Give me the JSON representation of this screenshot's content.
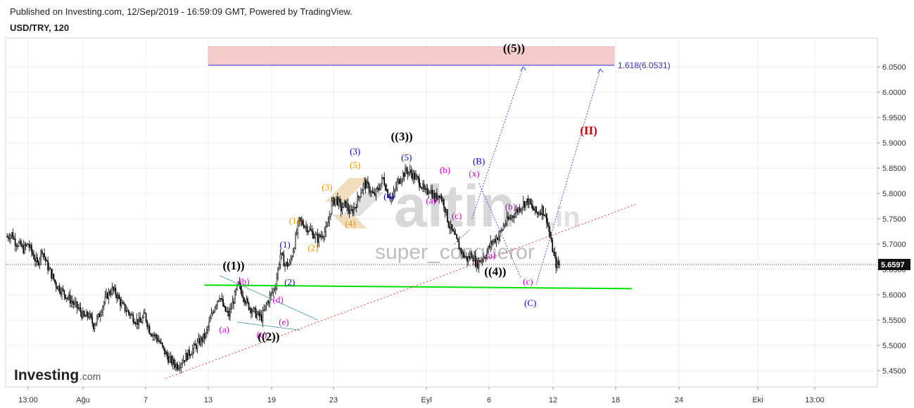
{
  "header": {
    "published": "Published on Investing.com, 12/Sep/2019 - 16:59:09 GMT, Powered by TradingView.",
    "symbol": "USD/TRY, 120"
  },
  "branding": {
    "logo_bold": "Investing",
    "logo_small": ".com",
    "watermark_main": "altin",
    "watermark_suffix": ".in",
    "watermark_sub": "super_conqueror"
  },
  "colors": {
    "up": "#000000",
    "down": "#000000",
    "green": "#00e000",
    "red_dots": "#e53935",
    "blue": "#0000cc",
    "magenta": "#cc00cc",
    "orange": "#e69500",
    "target_zone": "#f4cccc"
  },
  "chart_data": {
    "type": "candlestick",
    "title": "USD/TRY, 120",
    "y_ticks": [
      "6.0500",
      "6.0000",
      "5.9500",
      "5.9000",
      "5.8500",
      "5.8000",
      "5.7500",
      "5.7000",
      "5.6500",
      "5.6000",
      "5.5500",
      "5.5000",
      "5.4500"
    ],
    "y_range": [
      5.42,
      6.11
    ],
    "x_ticks": [
      "13:00",
      "Ağu",
      "7",
      "13",
      "19",
      "23",
      "Eyl",
      "6",
      "12",
      "18",
      "24",
      "Eki",
      "13:00"
    ],
    "last_price": "5.6597",
    "last_price_value": 5.6597,
    "fib_label": "1.618(6.0531)",
    "fib_value": 6.0531,
    "target_zone": {
      "low": 6.0531,
      "high": 6.09
    },
    "close_path": [
      [
        0,
        5.715
      ],
      [
        4,
        5.72
      ],
      [
        7,
        5.705
      ],
      [
        10,
        5.7
      ],
      [
        14,
        5.69
      ],
      [
        18,
        5.7
      ],
      [
        22,
        5.68
      ],
      [
        26,
        5.66
      ],
      [
        30,
        5.69
      ],
      [
        34,
        5.66
      ],
      [
        38,
        5.64
      ],
      [
        42,
        5.62
      ],
      [
        46,
        5.61
      ],
      [
        50,
        5.6
      ],
      [
        54,
        5.59
      ],
      [
        58,
        5.58
      ],
      [
        62,
        5.57
      ],
      [
        66,
        5.555
      ],
      [
        70,
        5.56
      ],
      [
        74,
        5.54
      ],
      [
        78,
        5.555
      ],
      [
        82,
        5.58
      ],
      [
        86,
        5.6
      ],
      [
        90,
        5.61
      ],
      [
        94,
        5.6
      ],
      [
        98,
        5.58
      ],
      [
        102,
        5.57
      ],
      [
        106,
        5.56
      ],
      [
        110,
        5.55
      ],
      [
        114,
        5.545
      ],
      [
        118,
        5.56
      ],
      [
        122,
        5.53
      ],
      [
        126,
        5.52
      ],
      [
        130,
        5.51
      ],
      [
        134,
        5.49
      ],
      [
        138,
        5.475
      ],
      [
        142,
        5.465
      ],
      [
        146,
        5.46
      ],
      [
        150,
        5.47
      ],
      [
        154,
        5.48
      ],
      [
        158,
        5.49
      ],
      [
        162,
        5.5
      ],
      [
        166,
        5.51
      ],
      [
        170,
        5.52
      ],
      [
        174,
        5.55
      ],
      [
        178,
        5.58
      ],
      [
        182,
        5.6
      ],
      [
        186,
        5.57
      ],
      [
        190,
        5.56
      ],
      [
        194,
        5.59
      ],
      [
        198,
        5.62
      ],
      [
        202,
        5.6
      ],
      [
        206,
        5.58
      ],
      [
        210,
        5.57
      ],
      [
        214,
        5.56
      ],
      [
        218,
        5.555
      ],
      [
        222,
        5.58
      ],
      [
        226,
        5.6
      ],
      [
        230,
        5.62
      ],
      [
        234,
        5.68
      ],
      [
        238,
        5.66
      ],
      [
        242,
        5.66
      ],
      [
        246,
        5.7
      ],
      [
        250,
        5.745
      ],
      [
        254,
        5.74
      ],
      [
        258,
        5.73
      ],
      [
        262,
        5.72
      ],
      [
        266,
        5.71
      ],
      [
        270,
        5.72
      ],
      [
        274,
        5.73
      ],
      [
        278,
        5.78
      ],
      [
        282,
        5.79
      ],
      [
        286,
        5.77
      ],
      [
        290,
        5.78
      ],
      [
        294,
        5.76
      ],
      [
        298,
        5.775
      ],
      [
        302,
        5.8
      ],
      [
        306,
        5.82
      ],
      [
        310,
        5.81
      ],
      [
        314,
        5.795
      ],
      [
        318,
        5.81
      ],
      [
        322,
        5.83
      ],
      [
        326,
        5.8
      ],
      [
        330,
        5.79
      ],
      [
        334,
        5.82
      ],
      [
        338,
        5.835
      ],
      [
        342,
        5.845
      ],
      [
        346,
        5.84
      ],
      [
        350,
        5.83
      ],
      [
        354,
        5.82
      ],
      [
        358,
        5.8
      ],
      [
        362,
        5.81
      ],
      [
        366,
        5.79
      ],
      [
        370,
        5.8
      ],
      [
        374,
        5.78
      ],
      [
        378,
        5.74
      ],
      [
        382,
        5.72
      ],
      [
        386,
        5.7
      ],
      [
        390,
        5.68
      ],
      [
        394,
        5.67
      ],
      [
        398,
        5.68
      ],
      [
        402,
        5.66
      ],
      [
        406,
        5.67
      ],
      [
        410,
        5.68
      ],
      [
        414,
        5.7
      ],
      [
        418,
        5.71
      ],
      [
        422,
        5.72
      ],
      [
        426,
        5.74
      ],
      [
        430,
        5.75
      ],
      [
        434,
        5.76
      ],
      [
        438,
        5.77
      ],
      [
        442,
        5.78
      ],
      [
        446,
        5.785
      ],
      [
        450,
        5.77
      ],
      [
        454,
        5.76
      ],
      [
        458,
        5.77
      ],
      [
        462,
        5.75
      ],
      [
        466,
        5.7
      ],
      [
        470,
        5.66
      ],
      [
        473,
        5.6597
      ]
    ],
    "annotations": [
      {
        "text": "((1))",
        "color": "#000000",
        "bold": true,
        "i": 194,
        "v": 5.65
      },
      {
        "text": "((2))",
        "color": "#000000",
        "bold": true,
        "i": 224,
        "v": 5.51
      },
      {
        "text": "((3))",
        "color": "#000000",
        "bold": true,
        "i": 338,
        "v": 5.905
      },
      {
        "text": "((4))",
        "color": "#000000",
        "bold": true,
        "i": 418,
        "v": 5.638
      },
      {
        "text": "((5))",
        "color": "#000000",
        "bold": true,
        "i": 434,
        "v": 6.079
      },
      {
        "text": "(II)",
        "color": "#cc0000",
        "bold": true,
        "i": 498,
        "v": 5.917
      },
      {
        "text": "(1)",
        "color": "#0000cc",
        "i": 238,
        "v": 5.693
      },
      {
        "text": "(2)",
        "color": "#0000cc",
        "i": 242,
        "v": 5.619
      },
      {
        "text": "(3)",
        "color": "#0000cc",
        "i": 298,
        "v": 5.877
      },
      {
        "text": "(4)",
        "color": "#0000cc",
        "i": 327,
        "v": 5.788
      },
      {
        "text": "(5)",
        "color": "#0000cc",
        "i": 342,
        "v": 5.865
      },
      {
        "text": "(B)",
        "color": "#0000cc",
        "i": 404,
        "v": 5.858
      },
      {
        "text": "(C)",
        "color": "#0000cc",
        "i": 448,
        "v": 5.578
      },
      {
        "text": "(1)",
        "color": "#e69500",
        "i": 246,
        "v": 5.74
      },
      {
        "text": "(2)",
        "color": "#e69500",
        "i": 262,
        "v": 5.687
      },
      {
        "text": "(3)",
        "color": "#e69500",
        "i": 274,
        "v": 5.806
      },
      {
        "text": "(4)",
        "color": "#e69500",
        "i": 294,
        "v": 5.735
      },
      {
        "text": "(5)",
        "color": "#e69500",
        "i": 298,
        "v": 5.85
      },
      {
        "text": "(a)",
        "color": "#cc00cc",
        "i": 186,
        "v": 5.526
      },
      {
        "text": "(b)",
        "color": "#cc00cc",
        "i": 203,
        "v": 5.62
      },
      {
        "text": "(c)",
        "color": "#cc00cc",
        "i": 218,
        "v": 5.515
      },
      {
        "text": "(d)",
        "color": "#cc00cc",
        "i": 232,
        "v": 5.585
      },
      {
        "text": "(e)",
        "color": "#cc00cc",
        "i": 237,
        "v": 5.54
      },
      {
        "text": "(a)",
        "color": "#cc00cc",
        "i": 363,
        "v": 5.78
      },
      {
        "text": "(b)",
        "color": "#cc00cc",
        "i": 375,
        "v": 5.84
      },
      {
        "text": "(c)",
        "color": "#cc00cc",
        "i": 385,
        "v": 5.75
      },
      {
        "text": "(x)",
        "color": "#cc00cc",
        "i": 400,
        "v": 5.833
      },
      {
        "text": "(a)",
        "color": "#cc00cc",
        "i": 414,
        "v": 5.672
      },
      {
        "text": "(b)",
        "color": "#cc00cc",
        "i": 431,
        "v": 5.768
      },
      {
        "text": "(c)",
        "color": "#cc00cc",
        "i": 446,
        "v": 5.62
      }
    ],
    "lines": [
      {
        "name": "green-support-line",
        "color": "#00e000",
        "width": 2,
        "dash": "",
        "from": [
          169,
          5.619
        ],
        "to": [
          535,
          5.612
        ]
      },
      {
        "name": "red-trend-line",
        "color": "#e53935",
        "width": 1,
        "dash": "2,3",
        "from": [
          136,
          5.435
        ],
        "to": [
          540,
          5.78
        ]
      },
      {
        "name": "teal-wedge-upper",
        "color": "#66aaaa",
        "width": 1,
        "dash": "",
        "from": [
          182,
          5.638
        ],
        "to": [
          266,
          5.55
        ]
      },
      {
        "name": "teal-wedge-lower",
        "color": "#66aaaa",
        "width": 1,
        "dash": "",
        "from": [
          197,
          5.546
        ],
        "to": [
          251,
          5.53
        ]
      },
      {
        "name": "blue-dotted-1",
        "color": "#4a56d8",
        "width": 1,
        "dash": "2,2",
        "from": [
          398,
          5.75
        ],
        "to": [
          442,
          6.05
        ]
      },
      {
        "name": "blue-dotted-2",
        "color": "#4a56d8",
        "width": 1,
        "dash": "2,2",
        "from": [
          404,
          5.82
        ],
        "to": [
          440,
          5.633
        ]
      },
      {
        "name": "blue-dotted-3",
        "color": "#4a56d8",
        "width": 1,
        "dash": "2,2",
        "from": [
          453,
          5.62
        ],
        "to": [
          508,
          6.046
        ]
      },
      {
        "name": "blue-dotted-4",
        "color": "#4a56d8",
        "width": 1,
        "dash": "2,2",
        "from": [
          383,
          5.7
        ],
        "to": [
          396,
          5.728
        ]
      }
    ]
  }
}
